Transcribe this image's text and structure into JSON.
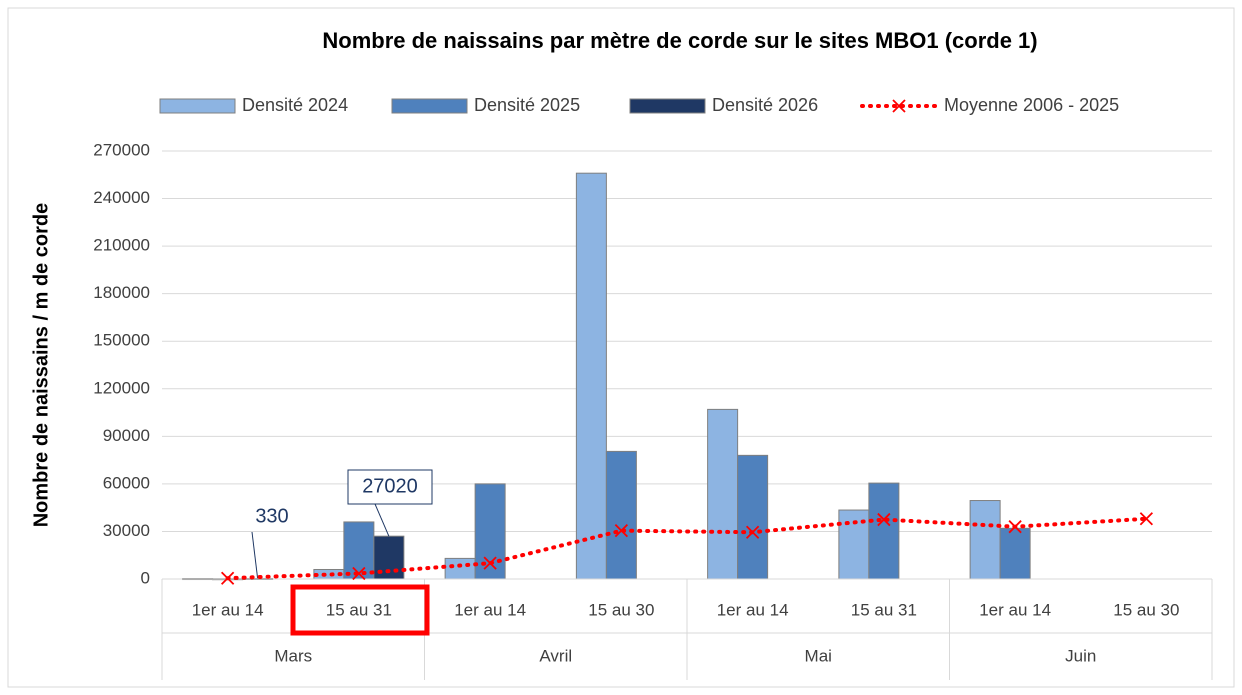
{
  "chart_data": {
    "type": "bar",
    "title": "Nombre de naissains par mètre de corde sur le sites MBO1 (corde 1)",
    "y_label": "Nombre de naissains / m de corde",
    "categories": [
      "1er au 14",
      "15 au 31",
      "1er au 14",
      "15 au 30",
      "1er au 14",
      "15 au 31",
      "1er au 14",
      "15 au 30"
    ],
    "groups": [
      "Mars",
      "Avril",
      "Mai",
      "Juin"
    ],
    "series": [
      {
        "name": "Densité 2024",
        "type": "bar",
        "color": "#8db4e2",
        "values": [
          300,
          6000,
          13000,
          256000,
          107000,
          43500,
          49500,
          null
        ]
      },
      {
        "name": "Densité 2025",
        "type": "bar",
        "color": "#4f81bd",
        "values": [
          200,
          36000,
          60000,
          80500,
          78000,
          60500,
          32000,
          null
        ]
      },
      {
        "name": "Densité 2026",
        "type": "bar",
        "color": "#1f3864",
        "values": [
          330,
          27020,
          null,
          null,
          null,
          null,
          null,
          null
        ],
        "data_labels": true
      },
      {
        "name": "Moyenne 2006 - 2025",
        "type": "line",
        "color": "#ff0000",
        "marker": "x",
        "dotted": true,
        "values": [
          500,
          3500,
          10000,
          30500,
          29500,
          37500,
          33000,
          38000
        ]
      }
    ],
    "ylim": [
      0,
      270000
    ],
    "yticks": [
      0,
      30000,
      60000,
      90000,
      120000,
      150000,
      180000,
      210000,
      240000,
      270000
    ],
    "grid": true,
    "legend": "top"
  }
}
